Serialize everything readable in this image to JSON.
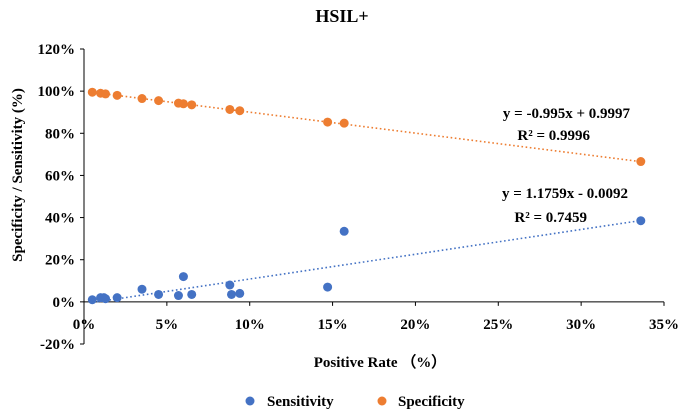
{
  "chart_data": {
    "type": "scatter",
    "title": "HSIL+",
    "xlabel": "Positive Rate （%）",
    "ylabel": "Specificity / Sensitivity (%)",
    "xlim": [
      0,
      35
    ],
    "ylim": [
      -20,
      120
    ],
    "x_ticks": [
      0,
      5,
      10,
      15,
      20,
      25,
      30,
      35
    ],
    "x_tick_labels": [
      "0%",
      "5%",
      "10%",
      "15%",
      "20%",
      "25%",
      "30%",
      "35%"
    ],
    "y_ticks": [
      -20,
      0,
      20,
      40,
      60,
      80,
      100,
      120
    ],
    "y_tick_labels": [
      "-20%",
      "0%",
      "20%",
      "40%",
      "60%",
      "80%",
      "100%",
      "120%"
    ],
    "grid": false,
    "legend_position": "bottom",
    "series": [
      {
        "name": "Sensitivity",
        "color": "#4472c4",
        "x": [
          0.5,
          1.0,
          1.2,
          1.3,
          2.0,
          3.5,
          4.5,
          5.7,
          6.0,
          6.5,
          8.8,
          8.9,
          9.4,
          14.7,
          15.7,
          33.6
        ],
        "y": [
          1,
          2,
          2,
          1.5,
          2,
          6,
          3.5,
          3,
          12,
          3.5,
          8,
          3.5,
          4,
          7,
          33.5,
          38.5
        ],
        "trendline": {
          "slope": 1.1759,
          "intercept": -0.0092
        },
        "equation": "y = 1.1759x - 0.0092",
        "r2": "R² = 0.7459"
      },
      {
        "name": "Specificity",
        "color": "#ed7d31",
        "x": [
          0.5,
          1.0,
          1.3,
          2.0,
          3.5,
          4.5,
          5.7,
          6.0,
          6.5,
          8.8,
          9.4,
          14.7,
          15.7,
          33.6
        ],
        "y": [
          99.5,
          99,
          98.7,
          98,
          96.5,
          95.5,
          94.3,
          94,
          93.5,
          91.3,
          90.7,
          85.3,
          84.8,
          66.6
        ],
        "trendline": {
          "slope": -0.995,
          "intercept": 0.9997
        },
        "equation": "y = -0.995x + 0.9997",
        "r2": "R² = 0.9996"
      }
    ]
  }
}
